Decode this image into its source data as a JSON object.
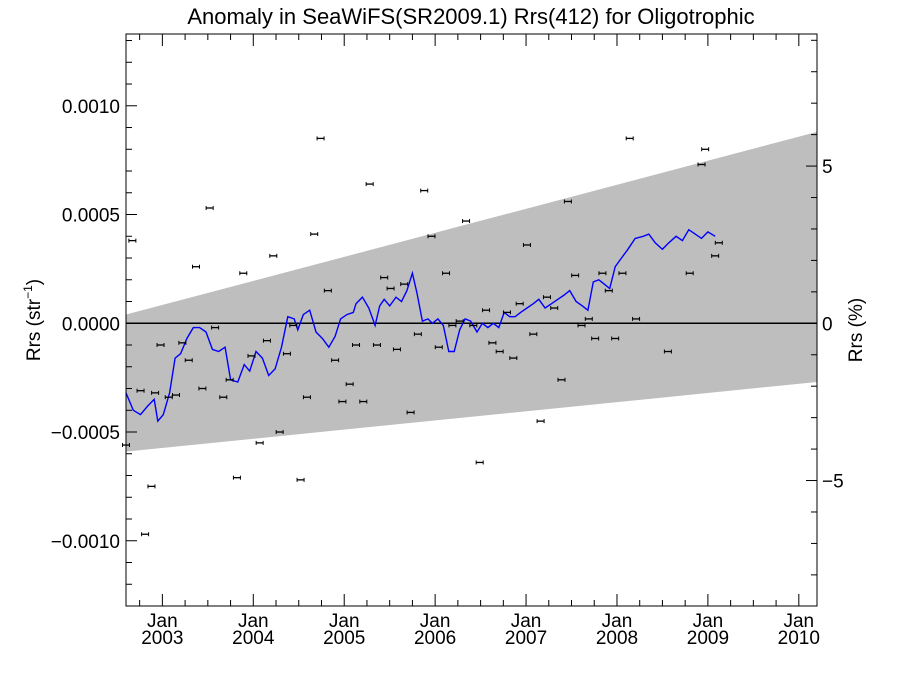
{
  "chart_data": {
    "type": "scatter",
    "title": "Anomaly in SeaWiFS(SR2009.1) Rrs(412) for Oligotrophic",
    "ylabel": "Rrs (str",
    "ylabel_sup": "−1",
    "ylabel_close": ")",
    "ylabel_right": "Rrs (%)",
    "xlim": [
      2002.6,
      2010.2
    ],
    "ylim": [
      -0.0013,
      0.00133
    ],
    "ylim_right_percent": [
      -8.99,
      9.2
    ],
    "grid": false,
    "colors": {
      "trend_band": "#bebebe",
      "running_mean": "#0000ff",
      "points": "#000000",
      "zero_line": "#000000"
    },
    "y_ticks": [
      {
        "value": 0.001,
        "label": "0.0010"
      },
      {
        "value": 0.0005,
        "label": "0.0005"
      },
      {
        "value": 0.0,
        "label": "0.0000"
      },
      {
        "value": -0.0005,
        "label": "−0.0005"
      },
      {
        "value": -0.001,
        "label": "−0.0010"
      }
    ],
    "y_ticks_right": [
      {
        "value": 5,
        "label": "5"
      },
      {
        "value": 0,
        "label": "0"
      },
      {
        "value": -5,
        "label": "−5"
      }
    ],
    "x_ticks": [
      {
        "value": 2003.0,
        "label_month": "Jan",
        "label_year": "2003"
      },
      {
        "value": 2004.0,
        "label_month": "Jan",
        "label_year": "2004"
      },
      {
        "value": 2005.0,
        "label_month": "Jan",
        "label_year": "2005"
      },
      {
        "value": 2006.0,
        "label_month": "Jan",
        "label_year": "2006"
      },
      {
        "value": 2007.0,
        "label_month": "Jan",
        "label_year": "2007"
      },
      {
        "value": 2008.0,
        "label_month": "Jan",
        "label_year": "2008"
      },
      {
        "value": 2009.0,
        "label_month": "Jan",
        "label_year": "2009"
      },
      {
        "value": 2010.0,
        "label_month": "Jan",
        "label_year": "2010"
      }
    ],
    "trend_band": {
      "upper": [
        [
          2002.6,
          4e-05
        ],
        [
          2010.2,
          0.00088
        ]
      ],
      "lower": [
        [
          2002.6,
          -0.00059
        ],
        [
          2010.2,
          -0.00027
        ]
      ]
    },
    "points": [
      [
        2002.6,
        -0.00056
      ],
      [
        2002.67,
        0.00038
      ],
      [
        2002.76,
        -0.00031
      ],
      [
        2002.81,
        -0.00097
      ],
      [
        2002.88,
        -0.00075
      ],
      [
        2002.92,
        -0.00032
      ],
      [
        2002.98,
        -0.0001
      ],
      [
        2003.07,
        -0.00034
      ],
      [
        2003.15,
        -0.00033
      ],
      [
        2003.22,
        -9e-05
      ],
      [
        2003.29,
        -0.00017
      ],
      [
        2003.37,
        0.00026
      ],
      [
        2003.44,
        -0.0003
      ],
      [
        2003.52,
        0.00053
      ],
      [
        2003.58,
        -2e-05
      ],
      [
        2003.67,
        -0.00034
      ],
      [
        2003.74,
        -0.00026
      ],
      [
        2003.82,
        -0.00071
      ],
      [
        2003.89,
        0.00023
      ],
      [
        2003.98,
        -0.00015
      ],
      [
        2004.07,
        -0.00055
      ],
      [
        2004.15,
        -8e-05
      ],
      [
        2004.22,
        0.00031
      ],
      [
        2004.29,
        -0.0005
      ],
      [
        2004.37,
        -0.00014
      ],
      [
        2004.44,
        -1e-05
      ],
      [
        2004.52,
        -0.00072
      ],
      [
        2004.59,
        -0.00034
      ],
      [
        2004.67,
        0.00041
      ],
      [
        2004.74,
        0.00085
      ],
      [
        2004.82,
        0.00015
      ],
      [
        2004.9,
        -0.00017
      ],
      [
        2004.98,
        -0.00036
      ],
      [
        2005.06,
        -0.00028
      ],
      [
        2005.13,
        -0.0001
      ],
      [
        2005.21,
        -0.00036
      ],
      [
        2005.28,
        0.00064
      ],
      [
        2005.36,
        -0.0001
      ],
      [
        2005.44,
        0.00021
      ],
      [
        2005.51,
        0.00016
      ],
      [
        2005.58,
        -0.00012
      ],
      [
        2005.66,
        0.00018
      ],
      [
        2005.73,
        -0.00041
      ],
      [
        2005.81,
        -5e-05
      ],
      [
        2005.88,
        0.00061
      ],
      [
        2005.96,
        0.0004
      ],
      [
        2006.04,
        -0.00011
      ],
      [
        2006.12,
        0.00023
      ],
      [
        2006.19,
        -1e-05
      ],
      [
        2006.27,
        1e-05
      ],
      [
        2006.34,
        0.00047
      ],
      [
        2006.42,
        -1e-05
      ],
      [
        2006.49,
        -0.00064
      ],
      [
        2006.56,
        6e-05
      ],
      [
        2006.63,
        -9e-05
      ],
      [
        2006.71,
        -0.00013
      ],
      [
        2006.79,
        5e-05
      ],
      [
        2006.86,
        -0.00016
      ],
      [
        2006.93,
        9e-05
      ],
      [
        2007.01,
        0.00036
      ],
      [
        2007.08,
        -5e-05
      ],
      [
        2007.16,
        -0.00045
      ],
      [
        2007.23,
        0.00012
      ],
      [
        2007.31,
        7e-05
      ],
      [
        2007.39,
        -0.00026
      ],
      [
        2007.46,
        0.00056
      ],
      [
        2007.54,
        0.00022
      ],
      [
        2007.61,
        -1e-05
      ],
      [
        2007.69,
        2e-05
      ],
      [
        2007.76,
        -7e-05
      ],
      [
        2007.84,
        0.00023
      ],
      [
        2007.91,
        0.00015
      ],
      [
        2007.98,
        -7e-05
      ],
      [
        2008.06,
        0.00023
      ],
      [
        2008.14,
        0.00085
      ],
      [
        2008.21,
        2e-05
      ],
      [
        2008.56,
        -0.00013
      ],
      [
        2008.8,
        0.00023
      ],
      [
        2008.93,
        0.00073
      ],
      [
        2008.97,
        0.0008
      ],
      [
        2009.08,
        0.00031
      ],
      [
        2009.12,
        0.00037
      ]
    ],
    "running_mean": [
      [
        2002.6,
        -0.00032
      ],
      [
        2002.68,
        -0.0004
      ],
      [
        2002.76,
        -0.00042
      ],
      [
        2002.84,
        -0.00038
      ],
      [
        2002.91,
        -0.00035
      ],
      [
        2002.95,
        -0.00045
      ],
      [
        2003.01,
        -0.00042
      ],
      [
        2003.08,
        -0.00032
      ],
      [
        2003.14,
        -0.00016
      ],
      [
        2003.2,
        -0.00014
      ],
      [
        2003.27,
        -7e-05
      ],
      [
        2003.34,
        -2e-05
      ],
      [
        2003.41,
        -2e-05
      ],
      [
        2003.48,
        -4e-05
      ],
      [
        2003.55,
        -0.00012
      ],
      [
        2003.62,
        -0.00013
      ],
      [
        2003.69,
        -0.00011
      ],
      [
        2003.75,
        -0.00026
      ],
      [
        2003.83,
        -0.00027
      ],
      [
        2003.9,
        -0.00019
      ],
      [
        2003.96,
        -0.00022
      ],
      [
        2004.03,
        -0.00013
      ],
      [
        2004.1,
        -0.00016
      ],
      [
        2004.17,
        -0.00024
      ],
      [
        2004.24,
        -0.00021
      ],
      [
        2004.31,
        -0.00011
      ],
      [
        2004.38,
        3e-05
      ],
      [
        2004.45,
        2e-05
      ],
      [
        2004.49,
        -3e-05
      ],
      [
        2004.55,
        4e-05
      ],
      [
        2004.62,
        6e-05
      ],
      [
        2004.69,
        -4e-05
      ],
      [
        2004.76,
        -7e-05
      ],
      [
        2004.83,
        -0.00011
      ],
      [
        2004.9,
        -6e-05
      ],
      [
        2004.96,
        2e-05
      ],
      [
        2005.03,
        4e-05
      ],
      [
        2005.1,
        5e-05
      ],
      [
        2005.13,
        9e-05
      ],
      [
        2005.2,
        0.00012
      ],
      [
        2005.27,
        7e-05
      ],
      [
        2005.34,
        -1e-05
      ],
      [
        2005.39,
        8e-05
      ],
      [
        2005.44,
        0.00011
      ],
      [
        2005.5,
        8e-05
      ],
      [
        2005.57,
        0.00012
      ],
      [
        2005.63,
        0.0001
      ],
      [
        2005.69,
        0.00015
      ],
      [
        2005.75,
        0.00023
      ],
      [
        2005.8,
        0.00014
      ],
      [
        2005.86,
        1e-05
      ],
      [
        2005.92,
        2e-05
      ],
      [
        2005.97,
        0.0
      ],
      [
        2006.03,
        2e-05
      ],
      [
        2006.09,
        -1e-05
      ],
      [
        2006.15,
        -0.00013
      ],
      [
        2006.21,
        -0.00013
      ],
      [
        2006.27,
        -3e-05
      ],
      [
        2006.33,
        2e-05
      ],
      [
        2006.39,
        1e-05
      ],
      [
        2006.46,
        -4e-05
      ],
      [
        2006.52,
        0.0
      ],
      [
        2006.58,
        -2e-05
      ],
      [
        2006.64,
        0.0
      ],
      [
        2006.7,
        -2e-05
      ],
      [
        2006.76,
        5e-05
      ],
      [
        2006.82,
        3e-05
      ],
      [
        2006.88,
        3e-05
      ],
      [
        2006.94,
        5e-05
      ],
      [
        2007.01,
        7e-05
      ],
      [
        2007.08,
        9e-05
      ],
      [
        2007.14,
        0.00011
      ],
      [
        2007.21,
        7e-05
      ],
      [
        2007.28,
        9e-05
      ],
      [
        2007.35,
        0.00011
      ],
      [
        2007.42,
        0.00013
      ],
      [
        2007.48,
        0.00015
      ],
      [
        2007.55,
        0.0001
      ],
      [
        2007.62,
        8e-05
      ],
      [
        2007.68,
        6e-05
      ],
      [
        2007.74,
        0.00019
      ],
      [
        2007.8,
        0.0002
      ],
      [
        2007.86,
        0.00018
      ],
      [
        2007.92,
        0.00016
      ],
      [
        2007.98,
        0.00026
      ],
      [
        2008.05,
        0.0003
      ],
      [
        2008.12,
        0.00034
      ],
      [
        2008.2,
        0.00039
      ],
      [
        2008.29,
        0.0004
      ],
      [
        2008.35,
        0.00041
      ],
      [
        2008.42,
        0.00037
      ],
      [
        2008.5,
        0.00034
      ],
      [
        2008.57,
        0.00037
      ],
      [
        2008.65,
        0.0004
      ],
      [
        2008.72,
        0.00038
      ],
      [
        2008.79,
        0.00043
      ],
      [
        2008.86,
        0.00041
      ],
      [
        2008.93,
        0.00039
      ],
      [
        2009.0,
        0.00042
      ],
      [
        2009.08,
        0.0004
      ]
    ]
  }
}
